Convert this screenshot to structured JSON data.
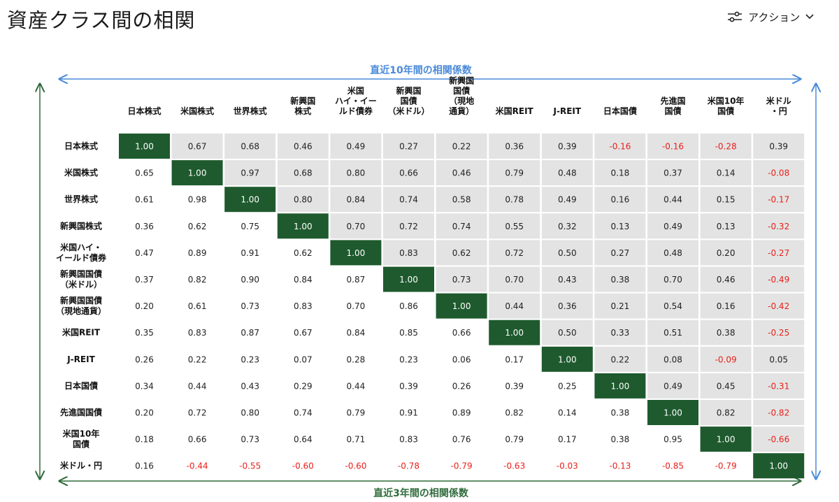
{
  "header": {
    "title": "資産クラス間の相関",
    "action_label": "アクション",
    "action_icon": "sliders-icon",
    "chevron_icon": "chevron-down-icon"
  },
  "colors": {
    "diagonal_fill": "#1e5a2e",
    "upper_cell_fill": "#e3e3e3",
    "lower_cell_fill": "#ffffff",
    "negative_text": "#e8201a",
    "positive_text": "#222222",
    "diagonal_text": "#ffffff",
    "top_arrow": "#4a8ad8",
    "left_arrow": "#2f6b3c",
    "bottom_arrow": "#2f6b3c",
    "right_arrow": "#4a8ad8",
    "top_label": "#4a8ad8",
    "bottom_label": "#2f6b3c"
  },
  "chart_data": {
    "type": "heatmap",
    "upper_triangle_label": "直近10年間の相関係数",
    "lower_triangle_label": "直近3年間の相関係数",
    "columns": [
      [
        "日本株式"
      ],
      [
        "米国株式"
      ],
      [
        "世界株式"
      ],
      [
        "新興国",
        "株式"
      ],
      [
        "米国",
        "ハイ・イー",
        "ルド債券"
      ],
      [
        "新興国",
        "国債",
        "（米ドル）"
      ],
      [
        "新興国",
        "国債",
        "（現地",
        "通貨）"
      ],
      [
        "米国REIT"
      ],
      [
        "J-REIT"
      ],
      [
        "日本国債"
      ],
      [
        "先進国",
        "国債"
      ],
      [
        "米国10年",
        "国債"
      ],
      [
        "米ドル",
        "・円"
      ]
    ],
    "rows": [
      [
        "日本株式"
      ],
      [
        "米国株式"
      ],
      [
        "世界株式"
      ],
      [
        "新興国株式"
      ],
      [
        "米国ハイ・",
        "イールド債券"
      ],
      [
        "新興国国債",
        "（米ドル）"
      ],
      [
        "新興国国債",
        "（現地通貨）"
      ],
      [
        "米国REIT"
      ],
      [
        "J-REIT"
      ],
      [
        "日本国債"
      ],
      [
        "先進国国債"
      ],
      [
        "米国10年",
        "国債"
      ],
      [
        "米ドル・円"
      ]
    ],
    "values": [
      [
        "1.00",
        "0.67",
        "0.68",
        "0.46",
        "0.49",
        "0.27",
        "0.22",
        "0.36",
        "0.39",
        "-0.16",
        "-0.16",
        "-0.28",
        "0.39"
      ],
      [
        "0.65",
        "1.00",
        "0.97",
        "0.68",
        "0.80",
        "0.66",
        "0.46",
        "0.79",
        "0.48",
        "0.18",
        "0.37",
        "0.14",
        "-0.08"
      ],
      [
        "0.61",
        "0.98",
        "1.00",
        "0.80",
        "0.84",
        "0.74",
        "0.58",
        "0.78",
        "0.49",
        "0.16",
        "0.44",
        "0.15",
        "-0.17"
      ],
      [
        "0.36",
        "0.62",
        "0.75",
        "1.00",
        "0.70",
        "0.72",
        "0.74",
        "0.55",
        "0.32",
        "0.13",
        "0.49",
        "0.13",
        "-0.32"
      ],
      [
        "0.47",
        "0.89",
        "0.91",
        "0.62",
        "1.00",
        "0.83",
        "0.62",
        "0.72",
        "0.50",
        "0.27",
        "0.48",
        "0.20",
        "-0.27"
      ],
      [
        "0.37",
        "0.82",
        "0.90",
        "0.84",
        "0.87",
        "1.00",
        "0.73",
        "0.70",
        "0.43",
        "0.38",
        "0.70",
        "0.46",
        "-0.49"
      ],
      [
        "0.20",
        "0.61",
        "0.73",
        "0.83",
        "0.70",
        "0.86",
        "1.00",
        "0.44",
        "0.36",
        "0.21",
        "0.54",
        "0.16",
        "-0.42"
      ],
      [
        "0.35",
        "0.83",
        "0.87",
        "0.67",
        "0.84",
        "0.85",
        "0.66",
        "1.00",
        "0.50",
        "0.33",
        "0.51",
        "0.38",
        "-0.25"
      ],
      [
        "0.26",
        "0.22",
        "0.23",
        "0.07",
        "0.28",
        "0.23",
        "0.06",
        "0.17",
        "1.00",
        "0.22",
        "0.08",
        "-0.09",
        "0.05"
      ],
      [
        "0.34",
        "0.44",
        "0.43",
        "0.29",
        "0.44",
        "0.39",
        "0.26",
        "0.39",
        "0.25",
        "1.00",
        "0.49",
        "0.45",
        "-0.31"
      ],
      [
        "0.20",
        "0.72",
        "0.80",
        "0.74",
        "0.79",
        "0.91",
        "0.89",
        "0.82",
        "0.14",
        "0.38",
        "1.00",
        "0.82",
        "-0.82"
      ],
      [
        "0.18",
        "0.66",
        "0.73",
        "0.64",
        "0.71",
        "0.83",
        "0.76",
        "0.79",
        "0.17",
        "0.38",
        "0.95",
        "1.00",
        "-0.66"
      ],
      [
        "0.16",
        "-0.44",
        "-0.55",
        "-0.60",
        "-0.60",
        "-0.78",
        "-0.79",
        "-0.63",
        "-0.03",
        "-0.13",
        "-0.85",
        "-0.79",
        "1.00"
      ]
    ]
  }
}
